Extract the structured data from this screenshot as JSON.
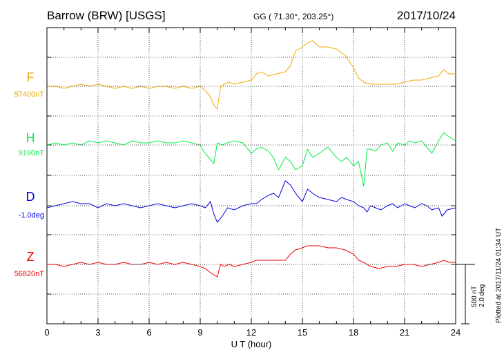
{
  "header": {
    "station": "Barrow (BRW)  [USGS]",
    "coords": "GG ( 71.30°, 203.25°)",
    "date": "2017/10/24"
  },
  "scale_label_1": "500 nT",
  "scale_label_2": "2.0 deg",
  "plotted_note": "Plotted at 2017/11/24 01:34 UT",
  "chart_data": {
    "type": "line",
    "xlabel": "U T (hour)",
    "xlim": [
      0,
      24
    ],
    "xticks": [
      "0",
      "3",
      "6",
      "9",
      "12",
      "15",
      "18",
      "21",
      "24"
    ],
    "series": [
      {
        "name": "F",
        "baseline_label": "57400nT",
        "color": "#f0a800",
        "x": [
          0,
          0.5,
          1,
          1.5,
          2,
          2.5,
          3,
          3.5,
          4,
          4.5,
          5,
          5.5,
          6,
          6.5,
          7,
          7.5,
          8,
          8.5,
          9,
          9.3,
          9.6,
          9.8,
          10,
          10.2,
          10.4,
          10.7,
          11,
          11.5,
          12,
          12.3,
          12.6,
          13,
          13.5,
          14,
          14.3,
          14.6,
          15,
          15.3,
          15.6,
          16,
          16.5,
          17,
          17.5,
          18,
          18.3,
          18.6,
          19,
          19.5,
          20,
          20.5,
          21,
          21.5,
          22,
          22.5,
          23,
          23.3,
          23.6,
          24
        ],
        "values": [
          0,
          0,
          -5,
          0,
          5,
          0,
          5,
          0,
          -5,
          0,
          -5,
          0,
          -5,
          0,
          0,
          -5,
          0,
          -5,
          0,
          -10,
          -25,
          -45,
          -55,
          0,
          5,
          10,
          5,
          10,
          15,
          30,
          35,
          25,
          30,
          35,
          50,
          85,
          95,
          105,
          110,
          95,
          95,
          90,
          75,
          45,
          20,
          10,
          5,
          5,
          5,
          5,
          10,
          15,
          15,
          20,
          25,
          40,
          30,
          30
        ]
      },
      {
        "name": "H",
        "baseline_label": "9190nT",
        "color": "#00ee44",
        "x": [
          0,
          0.5,
          1,
          1.5,
          2,
          2.5,
          3,
          3.5,
          4,
          4.5,
          5,
          5.5,
          6,
          6.5,
          7,
          7.5,
          8,
          8.5,
          9,
          9.2,
          9.5,
          9.8,
          10,
          10.3,
          10.6,
          11,
          11.5,
          12,
          12.3,
          12.6,
          13,
          13.3,
          13.6,
          14,
          14.3,
          14.6,
          15,
          15.3,
          15.6,
          16,
          16.5,
          17,
          17.3,
          17.6,
          18,
          18.3,
          18.6,
          18.8,
          19,
          19.3,
          19.6,
          20,
          20.3,
          20.6,
          21,
          21.3,
          21.6,
          22,
          22.3,
          22.6,
          23,
          23.3,
          23.6,
          24
        ],
        "values": [
          0,
          5,
          0,
          5,
          0,
          10,
          5,
          10,
          5,
          0,
          10,
          5,
          5,
          10,
          5,
          5,
          10,
          5,
          0,
          -15,
          -30,
          -45,
          5,
          0,
          5,
          10,
          5,
          -20,
          -10,
          -5,
          -15,
          -30,
          -60,
          -30,
          -40,
          -60,
          -50,
          -10,
          -30,
          -20,
          -5,
          -30,
          -40,
          -30,
          -50,
          -40,
          -100,
          -10,
          -10,
          -15,
          0,
          5,
          -15,
          5,
          0,
          10,
          5,
          10,
          -5,
          -20,
          10,
          30,
          20,
          10
        ]
      },
      {
        "name": "D",
        "baseline_label": "-1.0deg",
        "color": "#0000e0",
        "x": [
          0,
          0.5,
          1,
          1.5,
          2,
          2.5,
          3,
          3.5,
          4,
          4.5,
          5,
          5.5,
          6,
          6.5,
          7,
          7.5,
          8,
          8.5,
          9,
          9.3,
          9.6,
          9.8,
          10,
          10.3,
          10.6,
          11,
          11.5,
          12,
          12.3,
          12.6,
          13,
          13.3,
          13.6,
          14,
          14.3,
          14.6,
          15,
          15.3,
          15.6,
          16,
          16.5,
          17,
          17.3,
          17.6,
          18,
          18.3,
          18.6,
          18.8,
          19,
          19.3,
          19.6,
          20,
          20.3,
          20.6,
          21,
          21.3,
          21.6,
          22,
          22.3,
          22.6,
          23,
          23.2,
          23.5,
          24
        ],
        "values": [
          -5,
          0,
          5,
          10,
          5,
          5,
          -5,
          5,
          0,
          5,
          0,
          -5,
          0,
          5,
          0,
          -5,
          0,
          5,
          0,
          -5,
          10,
          -20,
          -40,
          -25,
          -5,
          -10,
          0,
          5,
          5,
          15,
          25,
          30,
          20,
          60,
          50,
          30,
          10,
          40,
          30,
          20,
          15,
          10,
          20,
          15,
          10,
          0,
          -5,
          -15,
          0,
          -5,
          -10,
          0,
          5,
          -5,
          5,
          0,
          -5,
          5,
          0,
          -10,
          -5,
          -25,
          -10,
          -5
        ]
      },
      {
        "name": "Z",
        "baseline_label": "56820nT",
        "color": "#ee0000",
        "x": [
          0,
          0.5,
          1,
          1.5,
          2,
          2.5,
          3,
          3.5,
          4,
          4.5,
          5,
          5.5,
          6,
          6.5,
          7,
          7.5,
          8,
          8.5,
          9,
          9.3,
          9.6,
          9.8,
          10,
          10.2,
          10.4,
          10.7,
          11,
          11.5,
          12,
          12.3,
          12.6,
          13,
          13.5,
          14,
          14.3,
          14.6,
          15,
          15.3,
          15.6,
          16,
          16.5,
          17,
          17.5,
          18,
          18.3,
          18.6,
          19,
          19.5,
          20,
          20.5,
          21,
          21.5,
          22,
          22.5,
          23,
          23.3,
          23.6,
          24
        ],
        "values": [
          0,
          0,
          -5,
          0,
          5,
          0,
          5,
          0,
          0,
          5,
          0,
          0,
          5,
          0,
          5,
          0,
          5,
          0,
          -5,
          -10,
          -20,
          -25,
          -30,
          0,
          -5,
          0,
          -5,
          0,
          5,
          10,
          10,
          10,
          10,
          10,
          25,
          35,
          40,
          45,
          45,
          45,
          40,
          40,
          35,
          25,
          10,
          5,
          -5,
          -10,
          -5,
          -5,
          0,
          0,
          -5,
          0,
          5,
          10,
          5,
          5
        ]
      }
    ]
  }
}
